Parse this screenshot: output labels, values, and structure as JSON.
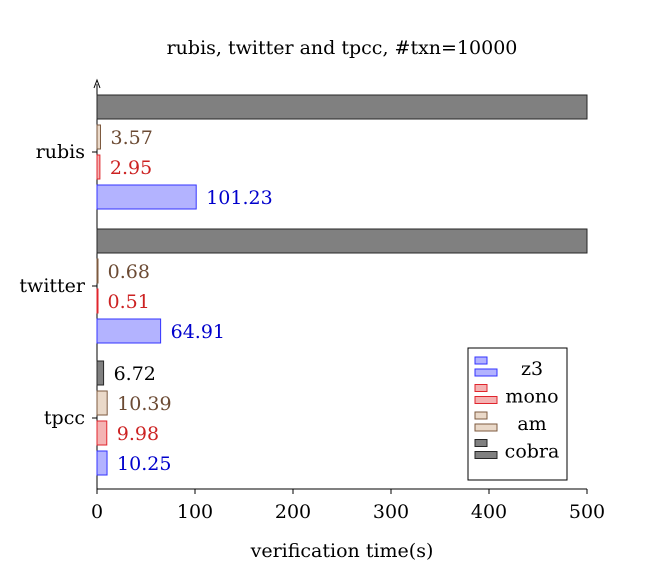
{
  "chart_data": {
    "type": "bar",
    "orientation": "horizontal",
    "title": "rubis, twitter and tpcc, #txn=10000",
    "xlabel": "verification time(s)",
    "ylabel": "",
    "xlim": [
      0,
      500
    ],
    "xticks": [
      0,
      100,
      200,
      300,
      400,
      500
    ],
    "categories": [
      "rubis",
      "twitter",
      "tpcc"
    ],
    "series": [
      {
        "name": "z3",
        "values": [
          101.23,
          64.91,
          10.25
        ],
        "labels": [
          "101.23",
          "64.91",
          "10.25"
        ],
        "color": "#3333ff",
        "fill": "#b3b3ff"
      },
      {
        "name": "mono",
        "values": [
          2.95,
          0.51,
          9.98
        ],
        "labels": [
          "2.95",
          "0.51",
          "9.98"
        ],
        "color": "#e0252d",
        "fill": "#f4b3b3"
      },
      {
        "name": "am",
        "values": [
          3.57,
          0.68,
          10.39
        ],
        "labels": [
          "3.57",
          "0.68",
          "10.39"
        ],
        "color": "#7d5a3f",
        "fill": "#ead9c9"
      },
      {
        "name": "cobra",
        "values": [
          500,
          500,
          6.72
        ],
        "labels": [
          "",
          "",
          "6.72"
        ],
        "color": "#262626",
        "fill": "#808080"
      }
    ],
    "label_colors": {
      "z3": "#0000cc",
      "mono": "#cc2222",
      "am": "#6b4a33",
      "cobra": "#000000"
    },
    "legend": {
      "placement": "bottom-right",
      "entries": [
        "z3",
        "mono",
        "am",
        "cobra"
      ]
    },
    "grid": false
  }
}
